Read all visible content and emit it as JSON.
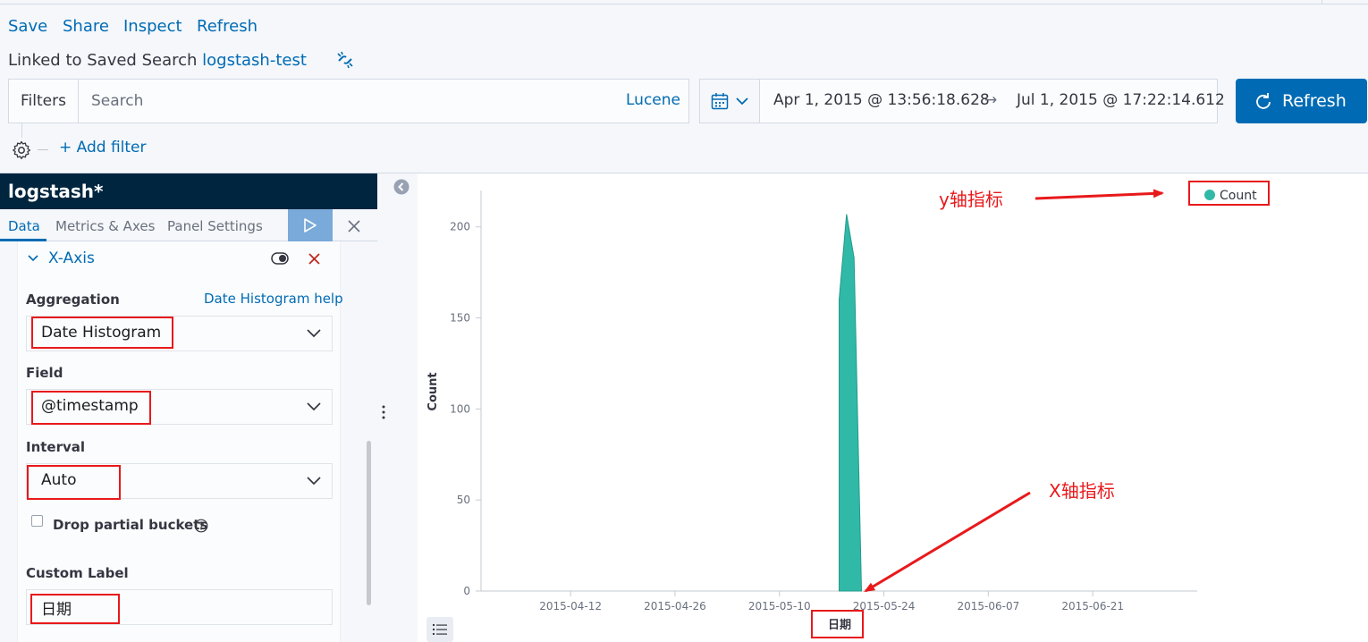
{
  "toolbar": {
    "save": "Save",
    "share": "Share",
    "inspect": "Inspect",
    "refresh": "Refresh"
  },
  "linked": {
    "prefix": "Linked to Saved Search",
    "name": "logstash-test"
  },
  "filterbar": {
    "filters_label": "Filters",
    "search_placeholder": "Search",
    "lucene": "Lucene"
  },
  "datepicker": {
    "start": "Apr 1, 2015 @ 13:56:18.628",
    "arrow": "→",
    "end": "Jul 1, 2015 @ 17:22:14.612"
  },
  "refresh_button": "Refresh",
  "add_filter": "+ Add filter",
  "sidebar": {
    "index_pattern": "logstash*",
    "tabs": [
      "Data",
      "Metrics & Axes",
      "Panel Settings"
    ],
    "xaxis_title": "X-Axis",
    "aggregation_label": "Aggregation",
    "help_link": "Date Histogram help",
    "aggregation_value": "Date Histogram",
    "field_label": "Field",
    "field_value": "@timestamp",
    "interval_label": "Interval",
    "interval_value": "Auto",
    "drop_partial_label": "Drop partial buckets",
    "custom_label_label": "Custom Label",
    "custom_label_value": "日期"
  },
  "colors": {
    "accent": "#006bb4",
    "series": "#31b9a8",
    "annotation": "#e8191b",
    "header_dark": "#00253f"
  },
  "chart_data": {
    "type": "area",
    "ylabel": "Count",
    "xlabel": "日期",
    "ylim": [
      0,
      220
    ],
    "yticks": [
      0,
      50,
      100,
      150,
      200
    ],
    "xlim": [
      "2015-03-31",
      "2015-07-05"
    ],
    "xticks": [
      "2015-04-12",
      "2015-04-26",
      "2015-05-10",
      "2015-05-24",
      "2015-06-07",
      "2015-06-21"
    ],
    "legend": {
      "position": "top-right",
      "entries": [
        "Count"
      ]
    },
    "series": [
      {
        "name": "Count",
        "points": [
          [
            "2015-05-18",
            0
          ],
          [
            "2015-05-18",
            160
          ],
          [
            "2015-05-19",
            207
          ],
          [
            "2015-05-20",
            183
          ],
          [
            "2015-05-21",
            0
          ]
        ]
      }
    ]
  },
  "annotations": {
    "y_axis": "y轴指标",
    "x_axis": "X轴指标"
  }
}
